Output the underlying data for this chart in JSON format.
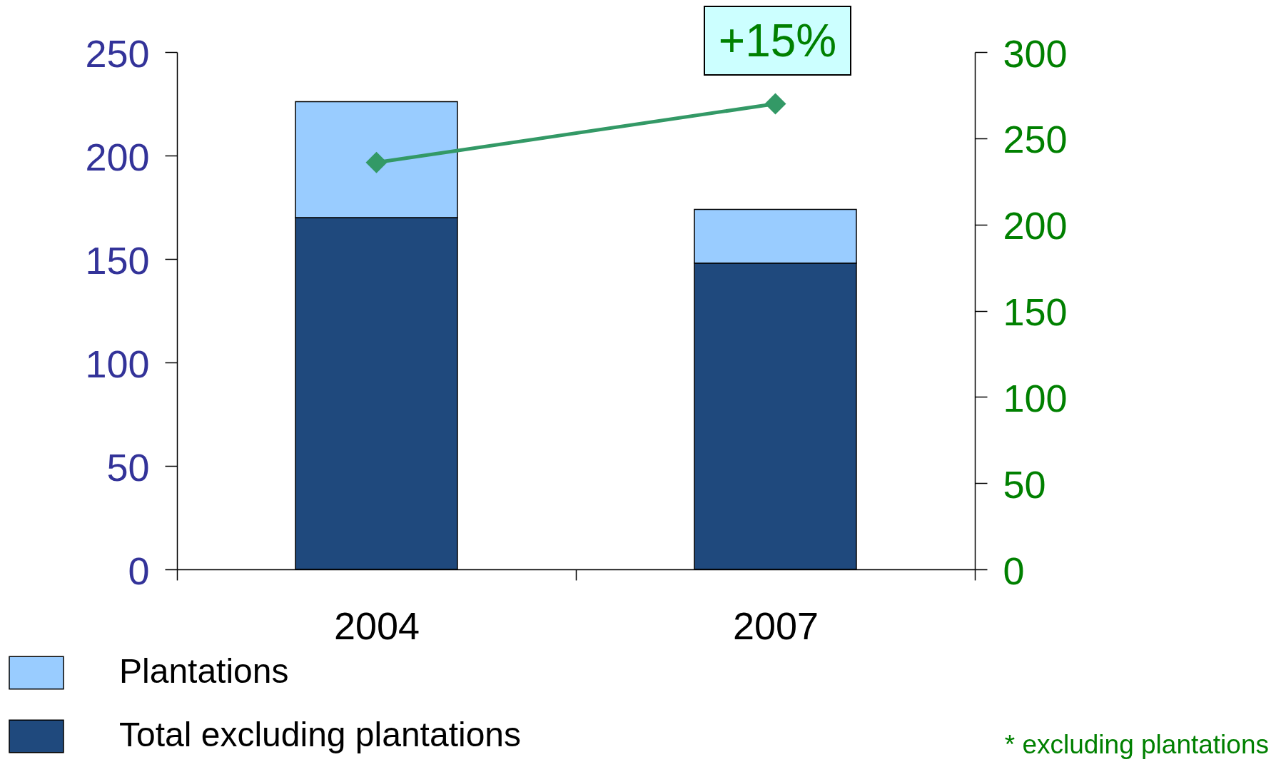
{
  "chart_data": {
    "type": "bar",
    "categories": [
      "2004",
      "2007"
    ],
    "stacked": true,
    "series": [
      {
        "name": "Total excluding plantations",
        "color": "#1f497d",
        "values": [
          170,
          148
        ]
      },
      {
        "name": "Plantations",
        "color": "#99ccff",
        "values": [
          56,
          26
        ]
      },
      {
        "type": "line",
        "axis": "y2",
        "color": "#339966",
        "values": [
          236,
          270
        ]
      }
    ],
    "ylim": [
      0,
      250
    ],
    "yticks": [
      0,
      50,
      100,
      150,
      200,
      250
    ],
    "y2lim": [
      0,
      300
    ],
    "y2ticks": [
      0,
      50,
      100,
      150,
      200,
      250,
      300
    ],
    "marker": "diamond",
    "legend": "bottom left",
    "annotations": [
      "+15%",
      "* excluding plantations"
    ]
  }
}
